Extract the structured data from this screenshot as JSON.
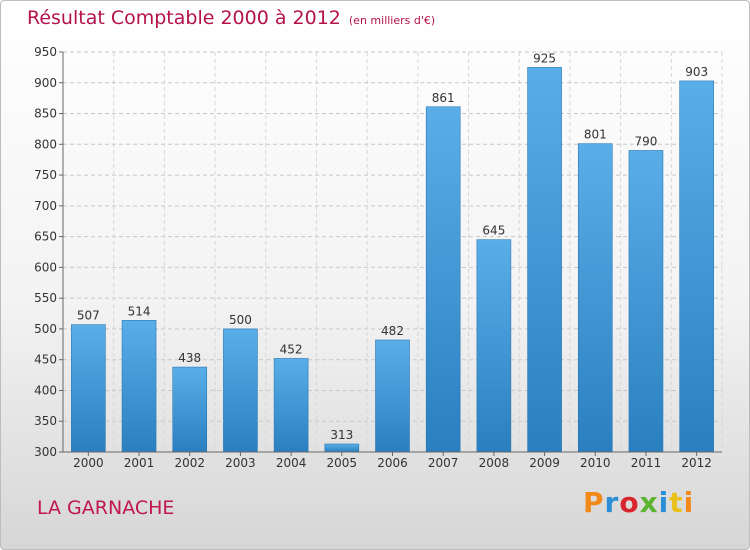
{
  "header": {
    "title": "Résultat Comptable 2000 à 2012",
    "subtitle": "(en milliers d'€)"
  },
  "footer": {
    "commune": "LA GARNACHE",
    "logo_text": "Proxiti"
  },
  "colors": {
    "title": "#b5124d",
    "bar_top": "#5aaee8",
    "bar_bottom": "#2a7fbf"
  },
  "chart_data": {
    "type": "bar",
    "title": "Résultat Comptable 2000 à 2012",
    "subtitle": "(en milliers d'€)",
    "xlabel": "",
    "ylabel": "",
    "categories": [
      "2000",
      "2001",
      "2002",
      "2003",
      "2004",
      "2005",
      "2006",
      "2007",
      "2008",
      "2009",
      "2010",
      "2011",
      "2012"
    ],
    "values": [
      507,
      514,
      438,
      500,
      452,
      313,
      482,
      861,
      645,
      925,
      801,
      790,
      903
    ],
    "ylim": [
      300,
      950
    ],
    "yticks": [
      300,
      350,
      400,
      450,
      500,
      550,
      600,
      650,
      700,
      750,
      800,
      850,
      900,
      950
    ],
    "grid": true,
    "data_labels": true
  }
}
